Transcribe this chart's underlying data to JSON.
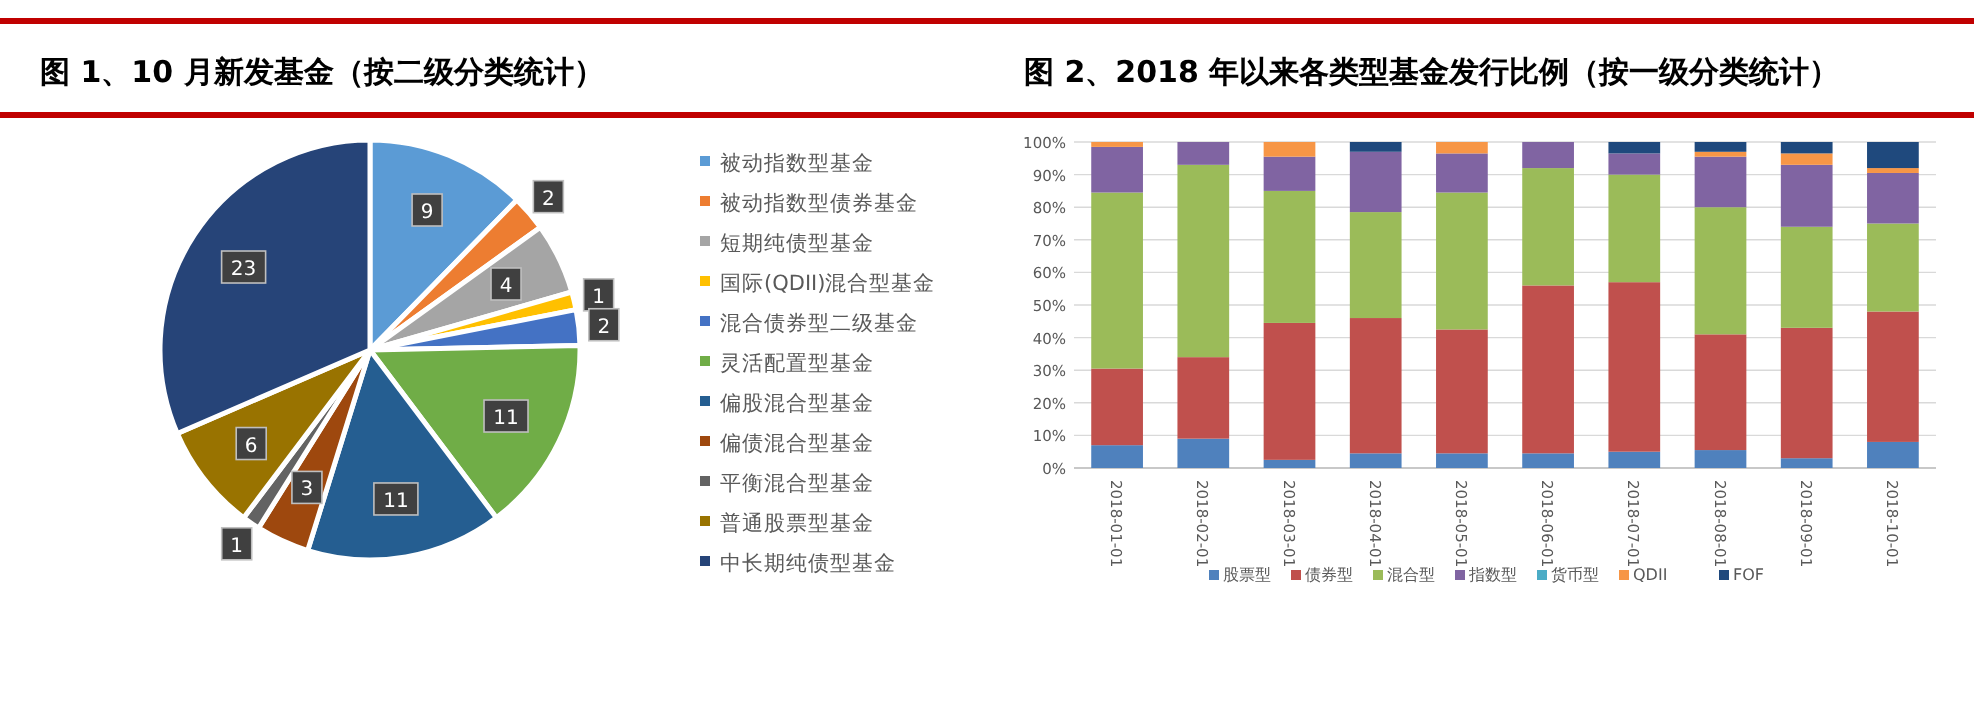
{
  "chart_data": [
    {
      "type": "pie",
      "title": "图 1、10 月新发基金（按二级分类统计）",
      "categories": [
        "被动指数型基金",
        "被动指数型债券基金",
        "短期纯债型基金",
        "国际(QDII)混合型基金",
        "混合债券型二级基金",
        "灵活配置型基金",
        "偏股混合型基金",
        "偏债混合型基金",
        "平衡混合型基金",
        "普通股票型基金",
        "中长期纯债型基金"
      ],
      "values": [
        9,
        2,
        4,
        1,
        2,
        11,
        11,
        3,
        1,
        6,
        23
      ],
      "colors": [
        "#5b9bd5",
        "#ed7d31",
        "#a5a5a5",
        "#ffc000",
        "#4472c4",
        "#70ad47",
        "#255e91",
        "#9e480e",
        "#636363",
        "#997300",
        "#264478"
      ],
      "data_labels": true,
      "legend": "right"
    },
    {
      "type": "bar",
      "stacked": true,
      "title": "图 2、2018 年以来各类型基金发行比例（按一级分类统计）",
      "categories": [
        "2018-01-01",
        "2018-02-01",
        "2018-03-01",
        "2018-04-01",
        "2018-05-01",
        "2018-06-01",
        "2018-07-01",
        "2018-08-01",
        "2018-09-01",
        "2018-10-01"
      ],
      "series": [
        {
          "name": "股票型",
          "color": "#4f81bd",
          "values": [
            7,
            9,
            2.5,
            4.5,
            4.5,
            4.5,
            5,
            5.5,
            3,
            8
          ]
        },
        {
          "name": "债券型",
          "color": "#c0504d",
          "values": [
            23.5,
            25,
            42,
            41.5,
            38,
            51.5,
            52,
            35.5,
            40,
            40
          ]
        },
        {
          "name": "混合型",
          "color": "#9bbb59",
          "values": [
            54,
            59,
            40.5,
            32.5,
            42,
            36,
            33,
            39,
            31,
            27
          ]
        },
        {
          "name": "指数型",
          "color": "#8064a2",
          "values": [
            14,
            7,
            10.5,
            18.5,
            12,
            8,
            6.5,
            15.5,
            19,
            15.5
          ]
        },
        {
          "name": "货币型",
          "color": "#4bacc6",
          "values": [
            0,
            0,
            0,
            0,
            0,
            0,
            0,
            0,
            0,
            0
          ]
        },
        {
          "name": "QDII",
          "color": "#f79646",
          "values": [
            1.5,
            0,
            4.5,
            0,
            3.5,
            0,
            0,
            1.5,
            3.5,
            1.5
          ]
        },
        {
          "name": "FOF",
          "color": "#1f497d",
          "values": [
            0,
            0,
            0,
            3,
            0,
            0,
            3.5,
            3,
            3.5,
            8
          ]
        }
      ],
      "ylim": [
        0,
        100
      ],
      "yticks": [
        {
          "value": 0,
          "label": "0%"
        },
        {
          "value": 10,
          "label": "10%"
        },
        {
          "value": 20,
          "label": "20%"
        },
        {
          "value": 30,
          "label": "30%"
        },
        {
          "value": 40,
          "label": "40%"
        },
        {
          "value": 50,
          "label": "50%"
        },
        {
          "value": 60,
          "label": "60%"
        },
        {
          "value": 70,
          "label": "70%"
        },
        {
          "value": 80,
          "label": "80%"
        },
        {
          "value": 90,
          "label": "90%"
        },
        {
          "value": 100,
          "label": "100%"
        }
      ],
      "grid": "y",
      "legend": "bottom"
    }
  ]
}
